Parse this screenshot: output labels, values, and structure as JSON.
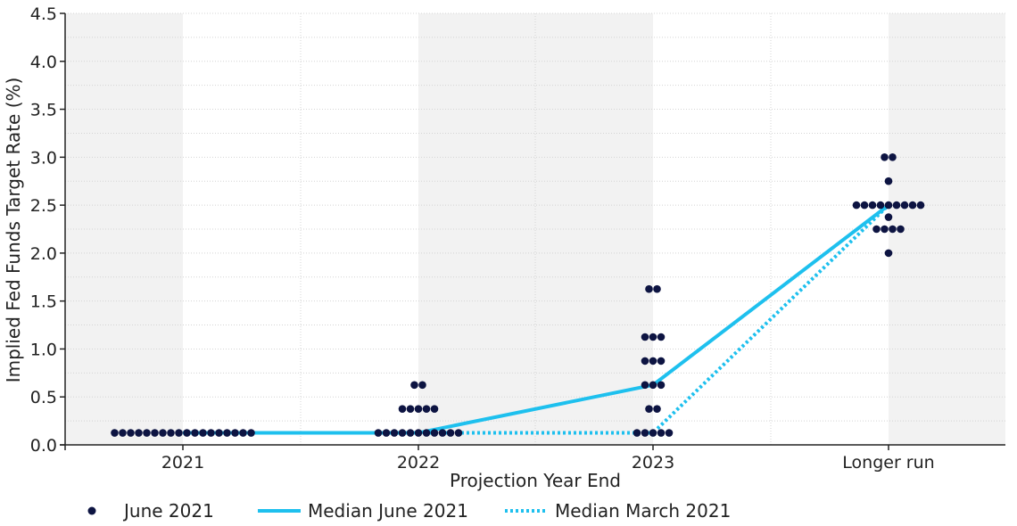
{
  "chart_data": {
    "type": "scatter",
    "xlabel": "Projection Year End",
    "ylabel": "Implied Fed Funds Target Rate (%)",
    "categories": [
      "2021",
      "2022",
      "2023",
      "Longer run"
    ],
    "ylim": [
      0,
      4.5
    ],
    "yticks": [
      "0.0",
      "0.5",
      "1.0",
      "1.5",
      "2.0",
      "2.5",
      "3.0",
      "3.5",
      "4.0",
      "4.5"
    ],
    "grid": true,
    "legend_position": "bottom",
    "colors": {
      "dots": "#0d1442",
      "median_june": "#1ec0ee",
      "median_march": "#1ec0ee",
      "band": "#f2f2f2"
    },
    "dots": {
      "name": "June 2021",
      "groups": [
        {
          "category": "2021",
          "rates": [
            {
              "value": 0.125,
              "count": 18
            }
          ]
        },
        {
          "category": "2022",
          "rates": [
            {
              "value": 0.125,
              "count": 11
            },
            {
              "value": 0.375,
              "count": 5
            },
            {
              "value": 0.625,
              "count": 2
            }
          ]
        },
        {
          "category": "2023",
          "rates": [
            {
              "value": 0.125,
              "count": 5
            },
            {
              "value": 0.375,
              "count": 2
            },
            {
              "value": 0.625,
              "count": 3
            },
            {
              "value": 0.875,
              "count": 3
            },
            {
              "value": 1.125,
              "count": 3
            },
            {
              "value": 1.625,
              "count": 2
            }
          ]
        },
        {
          "category": "Longer run",
          "rates": [
            {
              "value": 2.0,
              "count": 1
            },
            {
              "value": 2.25,
              "count": 4
            },
            {
              "value": 2.375,
              "count": 1
            },
            {
              "value": 2.5,
              "count": 9
            },
            {
              "value": 2.75,
              "count": 1
            },
            {
              "value": 3.0,
              "count": 2
            }
          ]
        }
      ]
    },
    "series": [
      {
        "name": "Median June 2021",
        "style": "solid",
        "values": [
          0.125,
          0.125,
          0.625,
          2.5
        ]
      },
      {
        "name": "Median March 2021",
        "style": "dotted",
        "values": [
          0.125,
          0.125,
          0.125,
          2.5
        ]
      }
    ]
  }
}
